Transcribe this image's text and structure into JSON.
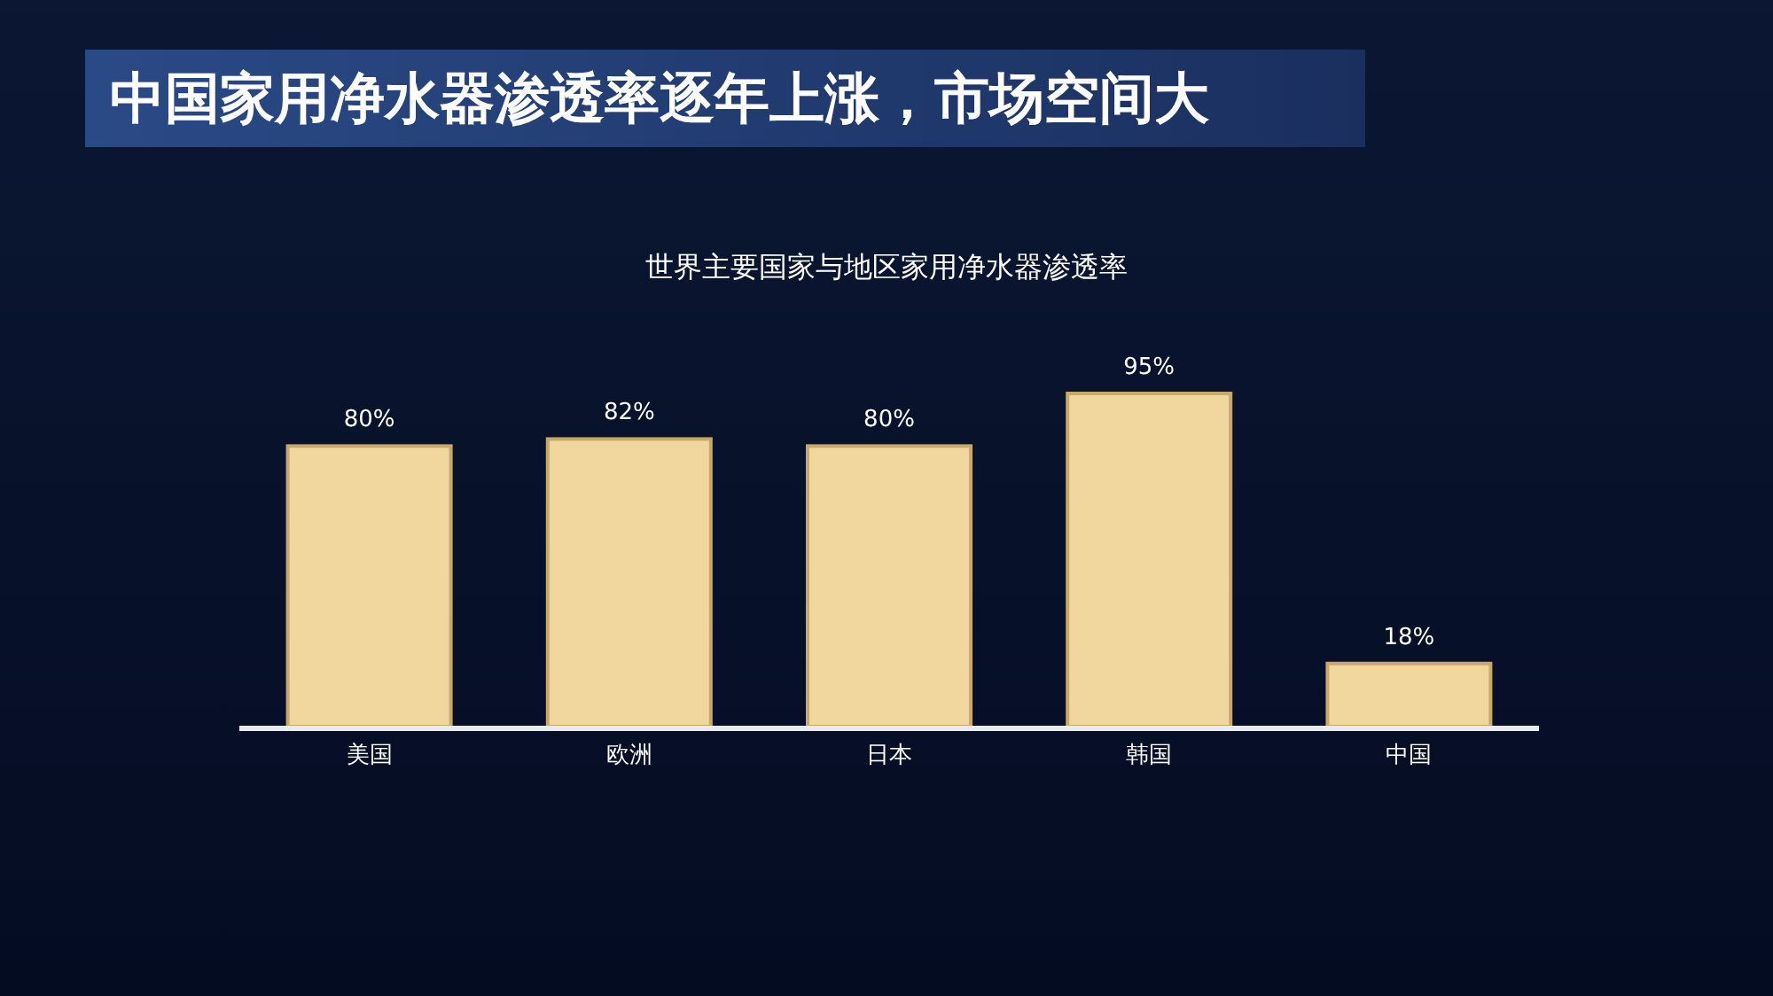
{
  "chart_data": {
    "type": "bar",
    "title": "中国家用净水器渗透率逐年上涨，市场空间大",
    "subtitle": "世界主要国家与地区家用净水器渗透率",
    "categories": [
      "美国",
      "欧洲",
      "日本",
      "韩国",
      "中国"
    ],
    "values": [
      80,
      82,
      80,
      95,
      18
    ],
    "value_labels": [
      "80%",
      "82%",
      "80%",
      "95%",
      "18%"
    ],
    "color": "#f1d69d"
  }
}
